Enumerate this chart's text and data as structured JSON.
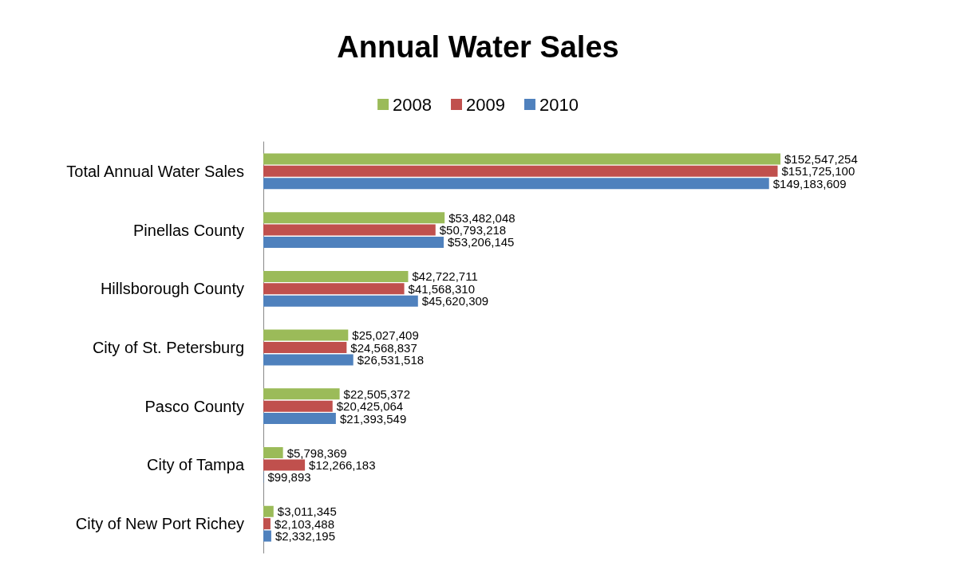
{
  "chart_data": {
    "type": "bar",
    "orientation": "horizontal",
    "title": "Annual Water Sales",
    "legend": "top",
    "categories": [
      "Total Annual Water Sales",
      "Pinellas County",
      "Hillsborough County",
      "City of St. Petersburg",
      "Pasco County",
      "City of Tampa",
      "City of New Port Richey"
    ],
    "series": [
      {
        "name": "2008",
        "color": "#9bbb59",
        "values": [
          152547254,
          53482048,
          42722711,
          25027409,
          22505372,
          5798369,
          3011345
        ],
        "value_labels": [
          "$152,547,254",
          "$53,482,048",
          "$42,722,711",
          "$25,027,409",
          "$22,505,372",
          "$5,798,369",
          "$3,011,345"
        ]
      },
      {
        "name": "2009",
        "color": "#c0504d",
        "values": [
          151725100,
          50793218,
          41568310,
          24568837,
          20425064,
          12266183,
          2103488
        ],
        "value_labels": [
          "$151,725,100",
          "$50,793,218",
          "$41,568,310",
          "$24,568,837",
          "$20,425,064",
          "$12,266,183",
          "$2,103,488"
        ]
      },
      {
        "name": "2010",
        "color": "#4f81bd",
        "values": [
          149183609,
          53206145,
          45620309,
          26531518,
          21393549,
          99893,
          2332195
        ],
        "value_labels": [
          "$149,183,609",
          "$53,206,145",
          "$45,620,309",
          "$26,531,518",
          "$21,393,549",
          "$99,893",
          "$2,332,195"
        ]
      }
    ],
    "grid": false
  }
}
